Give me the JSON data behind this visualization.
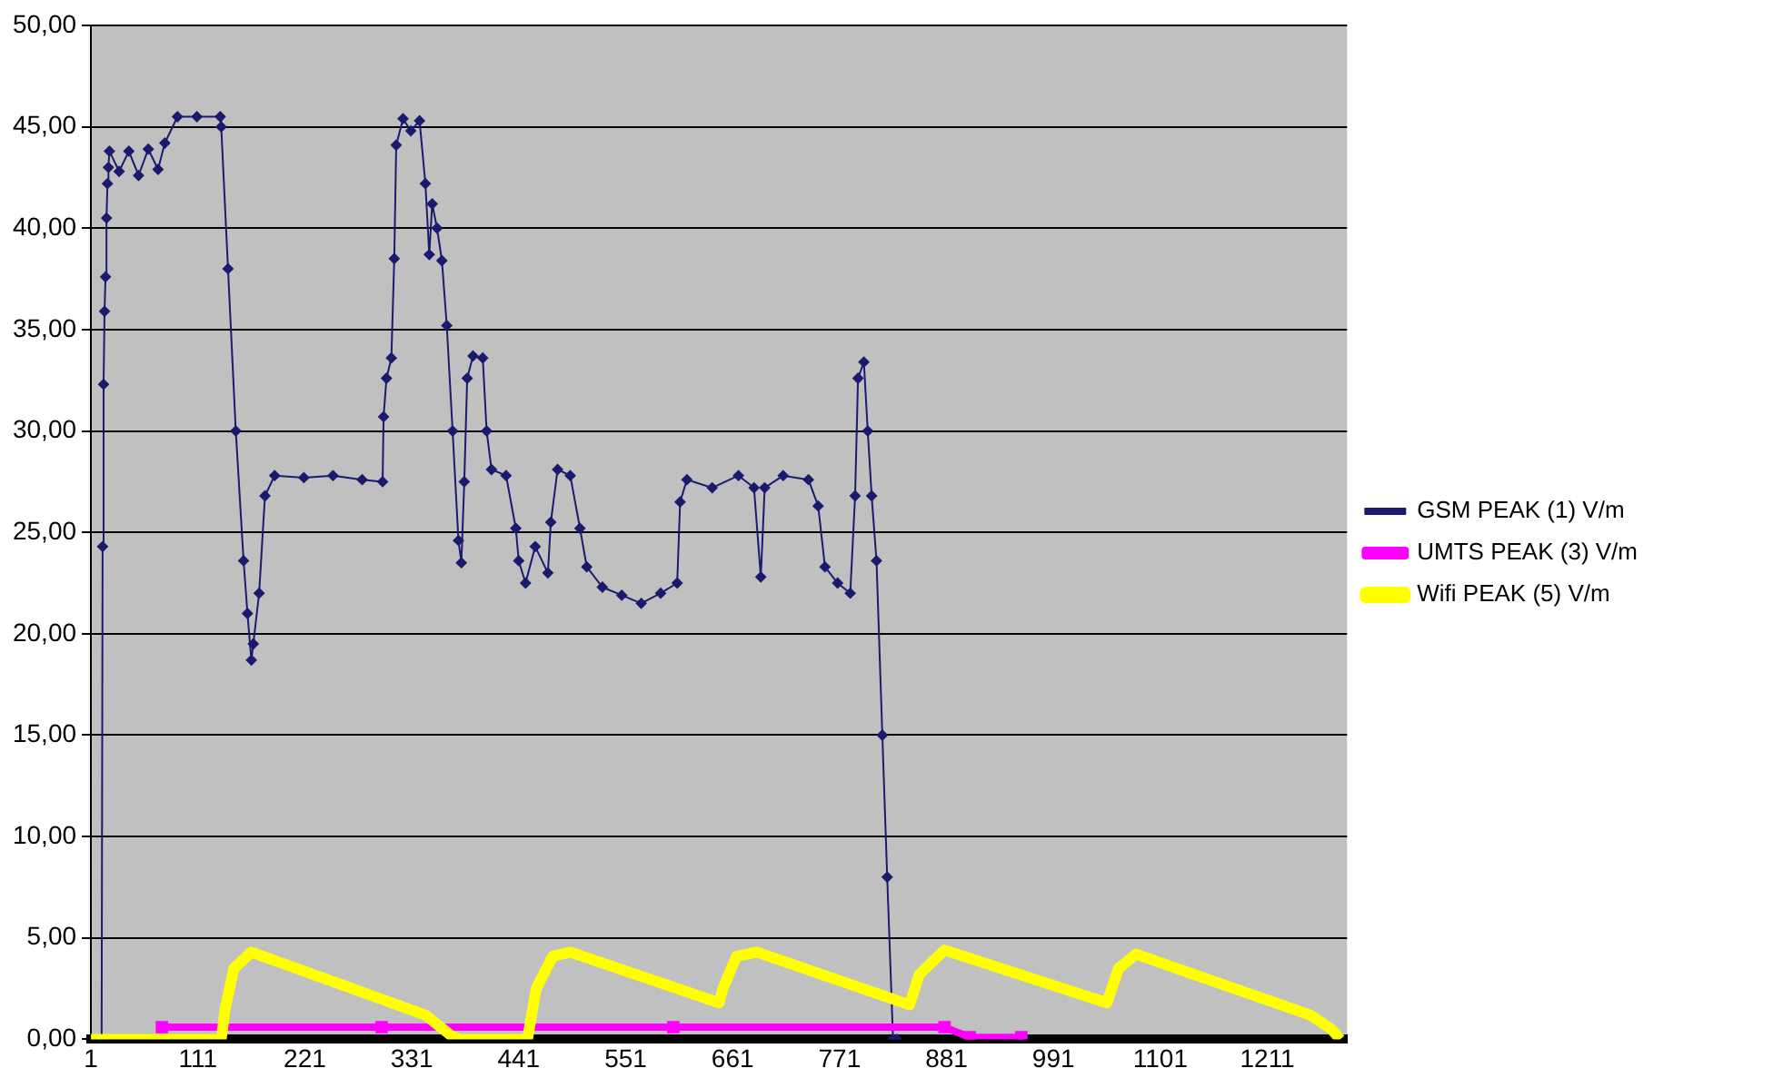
{
  "chart_data": {
    "type": "line",
    "legend": "right",
    "grid": "y",
    "xlim": [
      1,
      1293
    ],
    "xticks": [
      1,
      111,
      221,
      331,
      441,
      551,
      661,
      771,
      881,
      991,
      1101,
      1211
    ],
    "ylim": [
      0,
      50
    ],
    "yticks": [
      {
        "value": 0,
        "label": "0,00"
      },
      {
        "value": 5,
        "label": "5,00"
      },
      {
        "value": 10,
        "label": "10,00"
      },
      {
        "value": 15,
        "label": "15,00"
      },
      {
        "value": 20,
        "label": "20,00"
      },
      {
        "value": 25,
        "label": "25,00"
      },
      {
        "value": 30,
        "label": "30,00"
      },
      {
        "value": 35,
        "label": "35,00"
      },
      {
        "value": 40,
        "label": "40,00"
      },
      {
        "value": 45,
        "label": "45,00"
      },
      {
        "value": 50,
        "label": "50,00"
      }
    ],
    "series": [
      {
        "name": "GSM PEAK (1) V/m",
        "color": "#1a1a6e",
        "marker": "diamond",
        "x": [
          1,
          12,
          13,
          14,
          15,
          16,
          17,
          18,
          19,
          20,
          30,
          40,
          50,
          60,
          70,
          77,
          90,
          110,
          134,
          135,
          142,
          150,
          158,
          162,
          166,
          168,
          174,
          180,
          190,
          220,
          250,
          280,
          301,
          302,
          305,
          310,
          313,
          315,
          322,
          330,
          339,
          345,
          349,
          352,
          357,
          362,
          367,
          373,
          379,
          382,
          385,
          388,
          394,
          404,
          408,
          413,
          428,
          438,
          441,
          448,
          458,
          471,
          474,
          481,
          494,
          504,
          511,
          527,
          547,
          567,
          587,
          604,
          607,
          614,
          640,
          667,
          683,
          690,
          694,
          713,
          739,
          749,
          756,
          769,
          782,
          787,
          790,
          796,
          800,
          804,
          809,
          815,
          820,
          826,
          830
        ],
        "values": [
          0,
          0,
          24.3,
          32.3,
          35.9,
          37.6,
          40.5,
          42.2,
          43.0,
          43.8,
          42.8,
          43.8,
          42.6,
          43.9,
          42.9,
          44.2,
          45.5,
          45.5,
          45.5,
          45.0,
          38.0,
          30.0,
          23.6,
          21.0,
          18.7,
          19.5,
          22.0,
          26.8,
          27.8,
          27.7,
          27.8,
          27.6,
          27.5,
          30.7,
          32.6,
          33.6,
          38.5,
          44.1,
          45.4,
          44.8,
          45.3,
          42.2,
          38.7,
          41.2,
          40.0,
          38.4,
          35.2,
          30.0,
          24.6,
          23.5,
          27.5,
          32.6,
          33.7,
          33.6,
          30.0,
          28.1,
          27.8,
          25.2,
          23.6,
          22.5,
          24.3,
          23.0,
          25.5,
          28.1,
          27.8,
          25.2,
          23.3,
          22.3,
          21.9,
          21.5,
          22.0,
          22.5,
          26.5,
          27.6,
          27.2,
          27.8,
          27.2,
          22.8,
          27.2,
          27.8,
          27.6,
          26.3,
          23.3,
          22.5,
          22.0,
          26.8,
          32.6,
          33.4,
          30.0,
          26.8,
          23.6,
          15.0,
          8.0,
          0,
          0
        ]
      },
      {
        "name": "UMTS PEAK (3) V/m",
        "color": "#ff00ff",
        "marker": "square",
        "x": [
          74,
          300,
          600,
          879,
          905,
          958
        ],
        "values": [
          0.6,
          0.6,
          0.6,
          0.6,
          0.1,
          0.1
        ]
      },
      {
        "name": "Wifi PEAK (5) V/m",
        "color": "#ffff00",
        "marker": "none",
        "x": [
          1,
          135,
          139,
          148,
          166,
          345,
          371,
          380,
          450,
          459,
          476,
          494,
          647,
          651,
          665,
          686,
          843,
          853,
          879,
          1046,
          1058,
          1076,
          1255,
          1277,
          1286
        ],
        "values": [
          0,
          0,
          1.5,
          3.5,
          4.3,
          1.2,
          0.2,
          0,
          0,
          2.5,
          4.1,
          4.3,
          1.8,
          2.5,
          4.1,
          4.3,
          1.7,
          3.2,
          4.4,
          1.8,
          3.5,
          4.2,
          1.2,
          0.5,
          0
        ]
      }
    ]
  }
}
